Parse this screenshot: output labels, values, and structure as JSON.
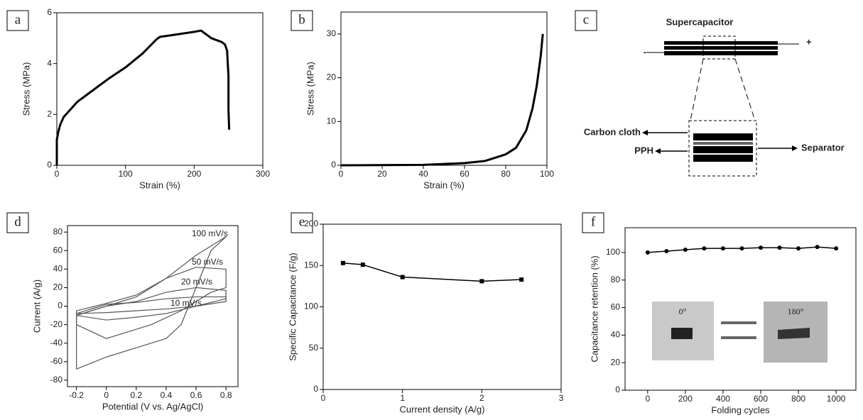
{
  "chart_data": [
    {
      "type": "line",
      "label": "a",
      "xlabel": "Strain (%)",
      "ylabel": "Stress (MPa)",
      "color": "#000000",
      "line_width": 3,
      "x": [
        0,
        0,
        2,
        5,
        10,
        20,
        30,
        50,
        75,
        100,
        125,
        145,
        150,
        175,
        200,
        210,
        225,
        240,
        245,
        248,
        250,
        250,
        250,
        251
      ],
      "values": [
        0,
        1,
        1.3,
        1.6,
        1.9,
        2.2,
        2.5,
        2.9,
        3.4,
        3.85,
        4.4,
        4.95,
        5.05,
        5.15,
        5.25,
        5.3,
        5.0,
        4.85,
        4.75,
        4.5,
        3.5,
        2.8,
        2.2,
        1.4
      ],
      "xlim": [
        0,
        300
      ],
      "xticks": [
        0,
        100,
        200,
        300
      ],
      "ylim": [
        0,
        6
      ],
      "yticks": [
        0,
        2,
        4,
        6
      ]
    },
    {
      "type": "line",
      "label": "b",
      "xlabel": "Strain (%)",
      "ylabel": "Stress (MPa)",
      "color": "#000000",
      "line_width": 3,
      "x": [
        0,
        40,
        60,
        70,
        80,
        85,
        90,
        93,
        95,
        97,
        98
      ],
      "values": [
        0,
        0.1,
        0.5,
        1,
        2.5,
        4,
        8,
        13,
        18,
        25,
        30
      ],
      "xlim": [
        0,
        100
      ],
      "xticks": [
        0,
        20,
        40,
        60,
        80,
        100
      ],
      "ylim": [
        0,
        35
      ],
      "yticks": [
        0,
        10,
        20,
        30
      ]
    },
    {
      "type": "diagram",
      "label": "c",
      "title": "Supercapacitor",
      "annotations": [
        "-",
        "+",
        "Carbon cloth",
        "PPH",
        "Separator"
      ]
    },
    {
      "type": "line",
      "label": "d",
      "xlabel": "Potential (V vs. Ag/AgCl)",
      "ylabel": "Current (A/g)",
      "xlim": [
        -0.26,
        0.88
      ],
      "xticks": [
        -0.2,
        0,
        0.2,
        0.4,
        0.6,
        0.8
      ],
      "ylim": [
        -87,
        87
      ],
      "yticks": [
        -80,
        -60,
        -40,
        -20,
        0,
        20,
        40,
        60,
        80
      ],
      "series": [
        {
          "name": "100 mV/s",
          "color": "#555555",
          "x": [
            -0.2,
            -0.2,
            0,
            0.2,
            0.4,
            0.6,
            0.8,
            0.7,
            0.6,
            0.5,
            0.4,
            0.2,
            0,
            -0.2
          ],
          "values": [
            -68,
            -10,
            0,
            10,
            30,
            55,
            75,
            60,
            20,
            -20,
            -35,
            -45,
            -55,
            -68
          ]
        },
        {
          "name": "50 mV/s",
          "color": "#555555",
          "x": [
            -0.2,
            -0.2,
            0,
            0.2,
            0.4,
            0.6,
            0.8,
            0.8,
            0.7,
            0.5,
            0.3,
            0,
            -0.2
          ],
          "values": [
            -20,
            -5,
            3,
            12,
            30,
            42,
            40,
            20,
            15,
            -5,
            -20,
            -35,
            -20
          ]
        },
        {
          "name": "20 mV/s",
          "color": "#555555",
          "x": [
            -0.2,
            0,
            0.2,
            0.4,
            0.6,
            0.8,
            0.8,
            0.6,
            0.4,
            0.2,
            0,
            -0.2
          ],
          "values": [
            -10,
            0,
            5,
            15,
            20,
            17,
            8,
            0,
            -8,
            -12,
            -15,
            -10
          ]
        },
        {
          "name": "10 mV/s",
          "color": "#555555",
          "x": [
            -0.2,
            0,
            0.2,
            0.4,
            0.6,
            0.8,
            0.8,
            0.6,
            0.4,
            0.2,
            0,
            -0.2
          ],
          "values": [
            -8,
            2,
            4,
            8,
            10,
            10,
            5,
            0,
            -3,
            -5,
            -7,
            -8
          ]
        }
      ]
    },
    {
      "type": "line",
      "label": "e",
      "xlabel": "Current density (A/g)",
      "ylabel": "Specific Capacitance (F/g)",
      "color": "#000000",
      "line_width": 1.5,
      "marker": "square",
      "x": [
        0.25,
        0.5,
        1,
        2,
        2.5
      ],
      "values": [
        153,
        151,
        136,
        131,
        133
      ],
      "xlim": [
        0,
        3
      ],
      "xticks": [
        0,
        1,
        2,
        3
      ],
      "ylim": [
        0,
        200
      ],
      "yticks": [
        0,
        50,
        100,
        150,
        200
      ]
    },
    {
      "type": "line",
      "label": "f",
      "xlabel": "Folding cycles",
      "ylabel": "Capacitance retention (%)",
      "color": "#000000",
      "line_width": 1.5,
      "marker": "circle",
      "x": [
        0,
        100,
        200,
        300,
        400,
        500,
        600,
        700,
        800,
        900,
        1000
      ],
      "values": [
        100,
        101,
        102,
        103,
        103,
        103,
        103.5,
        103.5,
        103,
        104,
        103
      ],
      "annotations": [
        "0°",
        "180°"
      ],
      "xlim": [
        -120,
        1105
      ],
      "xticks": [
        0,
        200,
        400,
        600,
        800,
        1000
      ],
      "ylim": [
        0,
        118
      ],
      "yticks": [
        0,
        20,
        40,
        60,
        80,
        100
      ]
    }
  ]
}
